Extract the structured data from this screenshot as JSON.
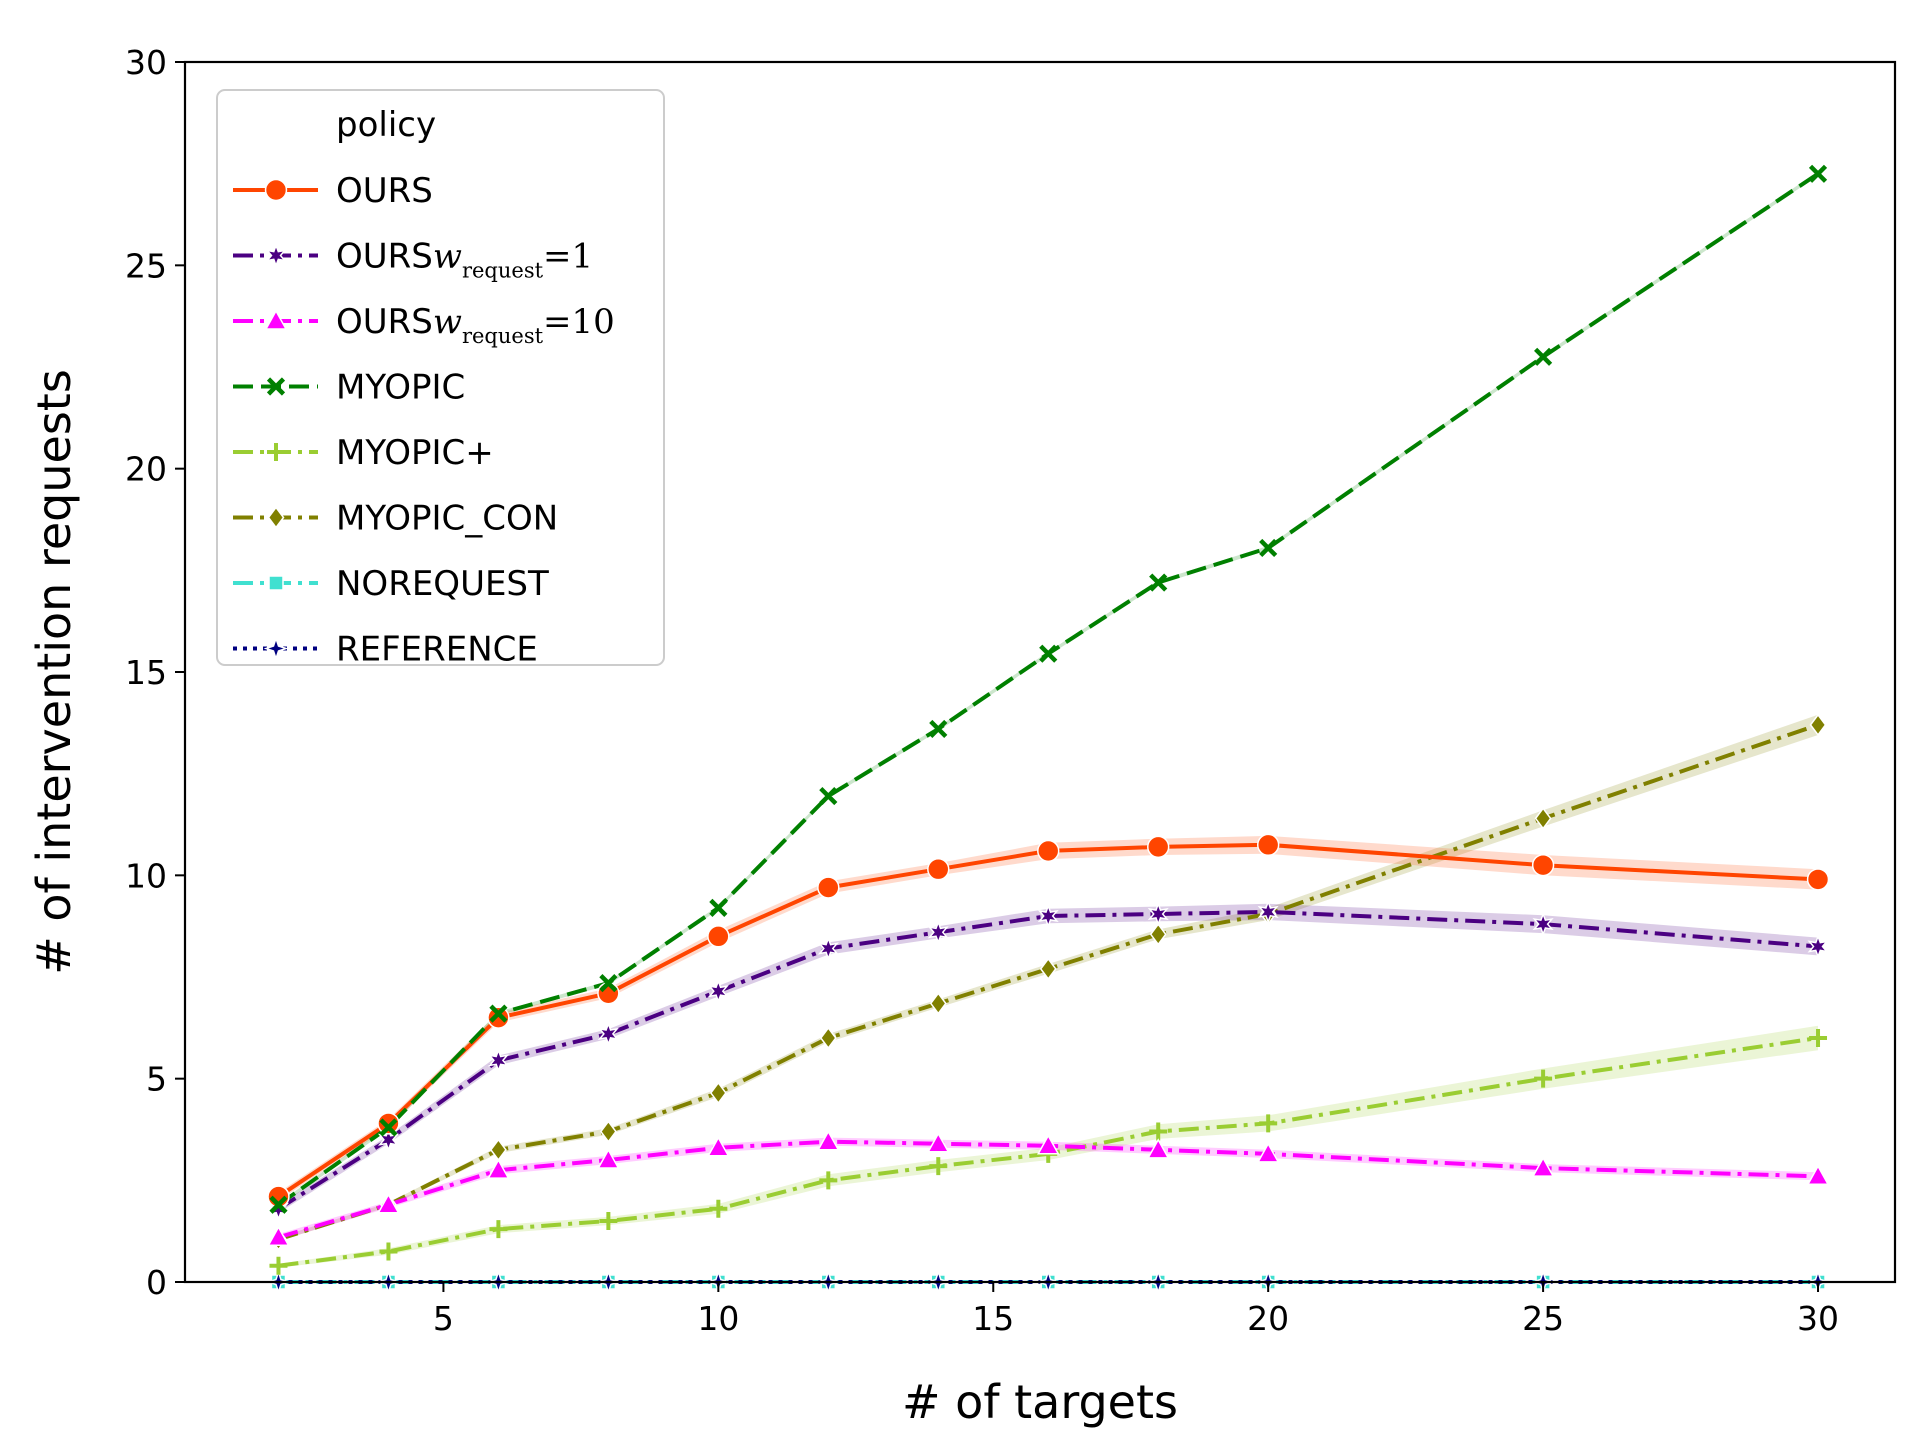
{
  "chart_data": {
    "type": "line",
    "xlabel": "# of targets",
    "ylabel": "# of intervention requests",
    "xlim": [
      0.3,
      31.4
    ],
    "ylim": [
      0,
      30
    ],
    "xticks": [
      "5",
      "10",
      "15",
      "20",
      "25",
      "30"
    ],
    "yticks": [
      "0",
      "5",
      "10",
      "15",
      "20",
      "25",
      "30"
    ],
    "grid": false,
    "legend": {
      "title": "policy",
      "position": "top-left"
    },
    "series": [
      {
        "name": "OURS",
        "legend_prefix": "OURS",
        "color": "#FF4500",
        "marker": "circle",
        "linestyle": "solid",
        "x": [
          2,
          4,
          6,
          8,
          10,
          12,
          14,
          16,
          18,
          20,
          25,
          30
        ],
        "y": [
          2.1,
          3.9,
          6.5,
          7.1,
          8.5,
          9.7,
          10.15,
          10.6,
          10.7,
          10.75,
          10.25,
          9.9
        ],
        "ci": [
          0.1,
          0.1,
          0.12,
          0.12,
          0.15,
          0.15,
          0.15,
          0.2,
          0.2,
          0.22,
          0.25,
          0.25
        ]
      },
      {
        "name": "OURSw_request=1",
        "legend_prefix": "OURS",
        "legend_math": "w",
        "legend_sub": "request",
        "legend_suffix": "=1",
        "color": "#4B0082",
        "marker": "star",
        "linestyle": "dashdot",
        "x": [
          2,
          4,
          6,
          8,
          10,
          12,
          14,
          16,
          18,
          20,
          25,
          30
        ],
        "y": [
          1.8,
          3.5,
          5.45,
          6.1,
          7.15,
          8.2,
          8.6,
          9.0,
          9.05,
          9.1,
          8.8,
          8.25
        ],
        "ci": [
          0.1,
          0.1,
          0.12,
          0.12,
          0.13,
          0.15,
          0.15,
          0.18,
          0.18,
          0.2,
          0.22,
          0.22
        ]
      },
      {
        "name": "OURSw_request=10",
        "legend_prefix": "OURS",
        "legend_math": "w",
        "legend_sub": "request",
        "legend_suffix": "=10",
        "color": "#FF00FF",
        "marker": "triangle",
        "linestyle": "dashdot",
        "x": [
          2,
          4,
          6,
          8,
          10,
          12,
          14,
          16,
          18,
          20,
          25,
          30
        ],
        "y": [
          1.1,
          1.9,
          2.75,
          3.0,
          3.3,
          3.45,
          3.4,
          3.35,
          3.25,
          3.15,
          2.8,
          2.6
        ],
        "ci": [
          0.08,
          0.08,
          0.1,
          0.1,
          0.1,
          0.1,
          0.1,
          0.1,
          0.1,
          0.1,
          0.1,
          0.1
        ]
      },
      {
        "name": "MYOPIC",
        "legend_prefix": "MYOPIC",
        "color": "#008000",
        "marker": "x",
        "linestyle": "dashed",
        "x": [
          2,
          4,
          6,
          8,
          10,
          12,
          14,
          16,
          18,
          20,
          25,
          30
        ],
        "y": [
          1.9,
          3.8,
          6.6,
          7.35,
          9.2,
          11.95,
          13.6,
          15.45,
          17.2,
          18.05,
          22.75,
          27.25
        ],
        "ci": [
          0.05,
          0.05,
          0.05,
          0.05,
          0.05,
          0.05,
          0.05,
          0.05,
          0.05,
          0.05,
          0.05,
          0.05
        ]
      },
      {
        "name": "MYOPIC+",
        "legend_prefix": "MYOPIC+",
        "color": "#9ACD32",
        "marker": "plus",
        "linestyle": "dashdot",
        "x": [
          2,
          4,
          6,
          8,
          10,
          12,
          14,
          16,
          18,
          20,
          25,
          30
        ],
        "y": [
          0.4,
          0.75,
          1.3,
          1.5,
          1.8,
          2.5,
          2.85,
          3.15,
          3.7,
          3.9,
          5.0,
          6.0
        ],
        "ci": [
          0.05,
          0.08,
          0.1,
          0.1,
          0.12,
          0.15,
          0.15,
          0.15,
          0.18,
          0.2,
          0.25,
          0.3
        ]
      },
      {
        "name": "MYOPIC_CON",
        "legend_prefix": "MYOPIC_CON",
        "color": "#808000",
        "marker": "diamond",
        "linestyle": "dashdot",
        "x": [
          2,
          4,
          6,
          8,
          10,
          12,
          14,
          16,
          18,
          20,
          25,
          30
        ],
        "y": [
          1.05,
          1.9,
          3.25,
          3.7,
          4.65,
          6.0,
          6.85,
          7.7,
          8.55,
          9.05,
          11.4,
          13.7
        ],
        "ci": [
          0.05,
          0.05,
          0.08,
          0.08,
          0.1,
          0.1,
          0.1,
          0.12,
          0.12,
          0.15,
          0.2,
          0.25
        ]
      },
      {
        "name": "NOREQUEST",
        "legend_prefix": "NOREQUEST",
        "color": "#40E0D0",
        "marker": "square",
        "linestyle": "dashdot",
        "x": [
          2,
          4,
          6,
          8,
          10,
          12,
          14,
          16,
          18,
          20,
          25,
          30
        ],
        "y": [
          0,
          0,
          0,
          0,
          0,
          0,
          0,
          0,
          0,
          0,
          0,
          0
        ],
        "ci": [
          0,
          0,
          0,
          0,
          0,
          0,
          0,
          0,
          0,
          0,
          0,
          0
        ]
      },
      {
        "name": "REFERENCE",
        "legend_prefix": "REFERENCE",
        "color": "#000080",
        "marker": "star4",
        "linestyle": "dotted",
        "x": [
          2,
          4,
          6,
          8,
          10,
          12,
          14,
          16,
          18,
          20,
          25,
          30
        ],
        "y": [
          0,
          0,
          0,
          0,
          0,
          0,
          0,
          0,
          0,
          0,
          0,
          0
        ],
        "ci": [
          0,
          0,
          0,
          0,
          0,
          0,
          0,
          0,
          0,
          0,
          0,
          0
        ]
      }
    ]
  }
}
